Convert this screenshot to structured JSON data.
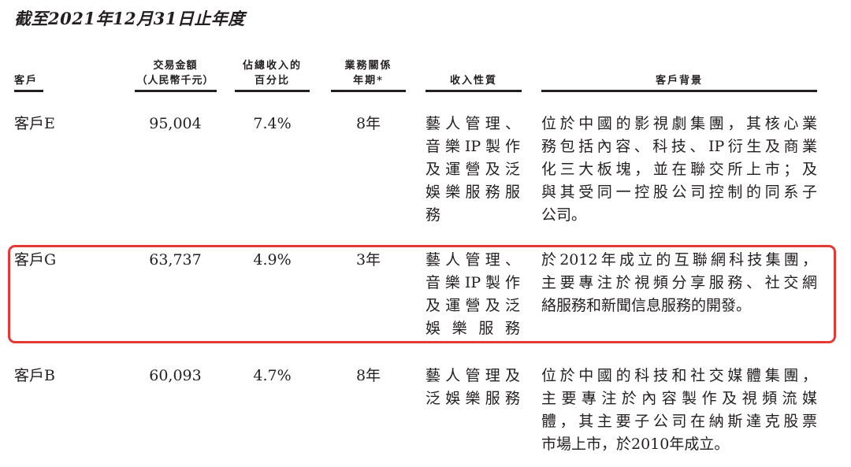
{
  "title": "截至2021年12月31日止年度",
  "headers": {
    "customer": "客戶",
    "amount": [
      "交易金額",
      "（人民幣千元）"
    ],
    "percent": [
      "佔總收入的",
      "百分比"
    ],
    "years": [
      "業務關係",
      "年期*"
    ],
    "nature": "收入性質",
    "background": "客戶背景"
  },
  "highlight_color": "#e53935",
  "rows": [
    {
      "customer": "客戶E",
      "amount": "95,004",
      "percent": "7.4%",
      "years": "8年",
      "nature": [
        "藝人管理、",
        "音樂IP製作",
        "及運營及泛",
        "娛樂服務服",
        "務"
      ],
      "background": [
        "位於中國的影視劇集團，其核心業",
        "務包括內容、科技、IP衍生及商業",
        "化三大板塊，並在聯交所上市；及",
        "與其受同一控股公司控制的同系子",
        "公司。"
      ]
    },
    {
      "customer": "客戶G",
      "amount": "63,737",
      "percent": "4.9%",
      "years": "3年",
      "nature": [
        "藝人管理、",
        "音樂IP製作",
        "及運營及泛",
        "娛樂服務"
      ],
      "background": [
        "於2012年成立的互聯網科技集團，",
        "主要專注於視頻分享服務、社交網",
        "絡服務和新聞信息服務的開發。"
      ]
    },
    {
      "customer": "客戶B",
      "amount": "60,093",
      "percent": "4.7%",
      "years": "8年",
      "nature": [
        "藝人管理及",
        "泛娛樂服務"
      ],
      "background": [
        "位於中國的科技和社交媒體集團，",
        "主要專注於內容製作及視頻流媒",
        "體，其主要子公司在納斯達克股票",
        "市場上市，於2010年成立。"
      ]
    }
  ]
}
